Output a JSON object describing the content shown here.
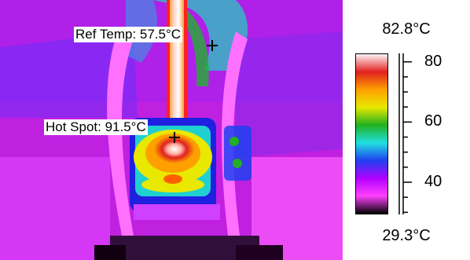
{
  "markers": [
    {
      "name": "ref-temp",
      "label": "Ref Temp: 57.5°C"
    },
    {
      "name": "hot-spot",
      "label": "Hot Spot: 91.5°C"
    }
  ],
  "scale": {
    "max_label": "82.8°C",
    "min_label": "29.3°C",
    "ticks": [
      "80",
      "60",
      "40"
    ],
    "max_value": 82.8,
    "min_value": 29.3,
    "colors": [
      "#fff4f4",
      "#e02020",
      "#ffa000",
      "#e8e800",
      "#20b020",
      "#20e0e0",
      "#2040f0",
      "#b000ff",
      "#ff40ff",
      "#000000"
    ]
  }
}
